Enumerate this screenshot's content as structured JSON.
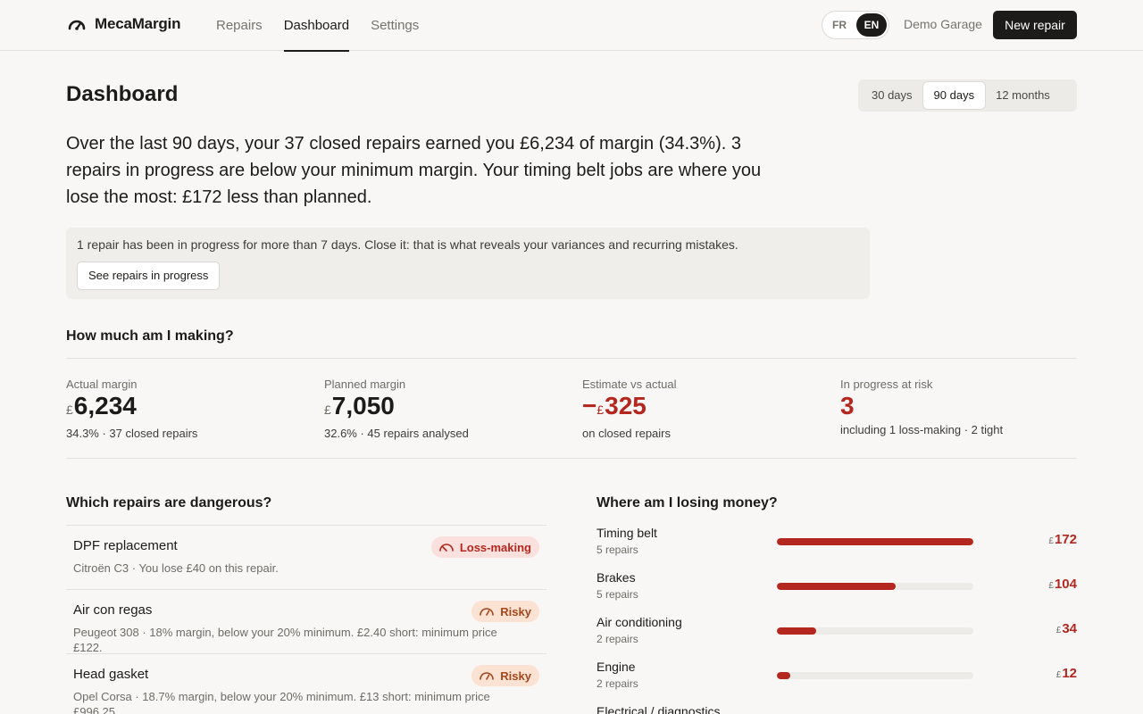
{
  "header": {
    "brand": "MecaMargin",
    "nav": [
      "Repairs",
      "Dashboard",
      "Settings"
    ],
    "nav_active": "Dashboard",
    "languages": [
      "FR",
      "EN"
    ],
    "language_active": "EN",
    "garage_name": "Demo Garage",
    "new_repair_label": "New repair"
  },
  "page": {
    "title": "Dashboard",
    "periods": [
      "30 days",
      "90 days",
      "12 months"
    ],
    "period_active": "90 days",
    "summary": "Over the last 90 days, your 37 closed repairs earned you £6,234 of margin (34.3%). 3 repairs in progress are below your minimum margin. Your timing belt jobs are where you lose the most: £172 less than planned.",
    "notice": {
      "text": "1 repair has been in progress for more than 7 days. Close it: that is what reveals your variances and recurring mistakes.",
      "button": "See repairs in progress"
    }
  },
  "making": {
    "title": "How much am I making?",
    "kpis": [
      {
        "label": "Actual margin",
        "currency": "£",
        "value": "6,234",
        "sub": "34.3% · 37 closed repairs"
      },
      {
        "label": "Planned margin",
        "currency": "£",
        "value": "7,050",
        "sub": "32.6% · 45 repairs analysed"
      },
      {
        "label": "Estimate vs actual",
        "sign": "−",
        "currency": "£",
        "value": "325",
        "sub": "on closed repairs"
      },
      {
        "label": "In progress at risk",
        "value": "3",
        "sub": "including 1 loss-making · 2 tight"
      }
    ]
  },
  "dangerous": {
    "title": "Which repairs are dangerous?",
    "items": [
      {
        "name": "DPF replacement",
        "badge": "Loss-making",
        "desc": "Citroën C3 · You lose £40 on this repair."
      },
      {
        "name": "Air con regas",
        "badge": "Risky",
        "desc": "Peugeot 308 · 18% margin, below your 20% minimum. £2.40 short: minimum price £122."
      },
      {
        "name": "Head gasket",
        "badge": "Risky",
        "desc": "Opel Corsa · 18.7% margin, below your 20% minimum. £13 short: minimum price £996.25"
      }
    ]
  },
  "losing": {
    "title": "Where am I losing money?",
    "currency": "£",
    "rows": [
      {
        "name": "Timing belt",
        "count": "5 repairs",
        "amount": "172",
        "share": 1.0
      },
      {
        "name": "Brakes",
        "count": "5 repairs",
        "amount": "104",
        "share": 0.605
      },
      {
        "name": "Air conditioning",
        "count": "2 repairs",
        "amount": "34",
        "share": 0.198
      },
      {
        "name": "Engine",
        "count": "2 repairs",
        "amount": "12",
        "share": 0.07
      },
      {
        "name": "Electrical / diagnostics",
        "count": "",
        "amount": "",
        "share": 0
      }
    ]
  },
  "colors": {
    "danger": "#b4271f",
    "risky": "#a4471c",
    "ink": "#1c1b19",
    "muted": "#6f6c67",
    "background": "#f8f7f5"
  }
}
